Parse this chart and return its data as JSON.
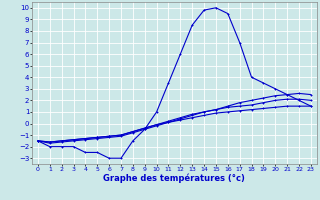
{
  "bg_color": "#cce8e8",
  "line_color": "#0000cc",
  "xlabel": "Graphe des températures (°c)",
  "xlim": [
    -0.5,
    23.5
  ],
  "ylim": [
    -3.5,
    10.5
  ],
  "xticks": [
    0,
    1,
    2,
    3,
    4,
    5,
    6,
    7,
    8,
    9,
    10,
    11,
    12,
    13,
    14,
    15,
    16,
    17,
    18,
    19,
    20,
    21,
    22,
    23
  ],
  "yticks": [
    -3,
    -2,
    -1,
    0,
    1,
    2,
    3,
    4,
    5,
    6,
    7,
    8,
    9,
    10
  ],
  "main_x": [
    0,
    1,
    2,
    3,
    4,
    5,
    6,
    7,
    8,
    9,
    10,
    11,
    12,
    13,
    14,
    15,
    16,
    17,
    18,
    19,
    20,
    21,
    22,
    23
  ],
  "main_y": [
    -1.5,
    -2.0,
    -2.0,
    -2.0,
    -2.5,
    -2.5,
    -3.0,
    -3.0,
    -1.5,
    -0.5,
    1.0,
    3.5,
    6.0,
    8.5,
    9.8,
    10.0,
    9.5,
    7.0,
    4.0,
    3.5,
    3.0,
    2.5,
    2.0,
    1.5
  ],
  "line2_x": [
    0,
    1,
    2,
    3,
    4,
    5,
    6,
    7,
    8,
    9,
    10,
    11,
    12,
    13,
    14,
    15,
    16,
    17,
    18,
    19,
    20,
    21,
    22,
    23
  ],
  "line2_y": [
    -1.5,
    -1.7,
    -1.6,
    -1.5,
    -1.4,
    -1.3,
    -1.2,
    -1.1,
    -0.8,
    -0.5,
    -0.2,
    0.1,
    0.4,
    0.7,
    1.0,
    1.2,
    1.5,
    1.8,
    2.0,
    2.2,
    2.4,
    2.5,
    2.6,
    2.5
  ],
  "line3_x": [
    0,
    1,
    2,
    3,
    4,
    5,
    6,
    7,
    8,
    9,
    10,
    11,
    12,
    13,
    14,
    15,
    16,
    17,
    18,
    19,
    20,
    21,
    22,
    23
  ],
  "line3_y": [
    -1.5,
    -1.6,
    -1.5,
    -1.4,
    -1.3,
    -1.2,
    -1.1,
    -1.0,
    -0.7,
    -0.4,
    -0.1,
    0.2,
    0.5,
    0.8,
    1.0,
    1.2,
    1.4,
    1.5,
    1.6,
    1.8,
    2.0,
    2.1,
    2.1,
    2.0
  ],
  "line4_x": [
    0,
    1,
    2,
    3,
    4,
    5,
    6,
    7,
    8,
    9,
    10,
    11,
    12,
    13,
    14,
    15,
    16,
    17,
    18,
    19,
    20,
    21,
    22,
    23
  ],
  "line4_y": [
    -1.5,
    -1.6,
    -1.5,
    -1.4,
    -1.3,
    -1.2,
    -1.1,
    -1.0,
    -0.7,
    -0.4,
    -0.1,
    0.1,
    0.3,
    0.5,
    0.7,
    0.9,
    1.0,
    1.1,
    1.2,
    1.3,
    1.4,
    1.5,
    1.5,
    1.5
  ]
}
